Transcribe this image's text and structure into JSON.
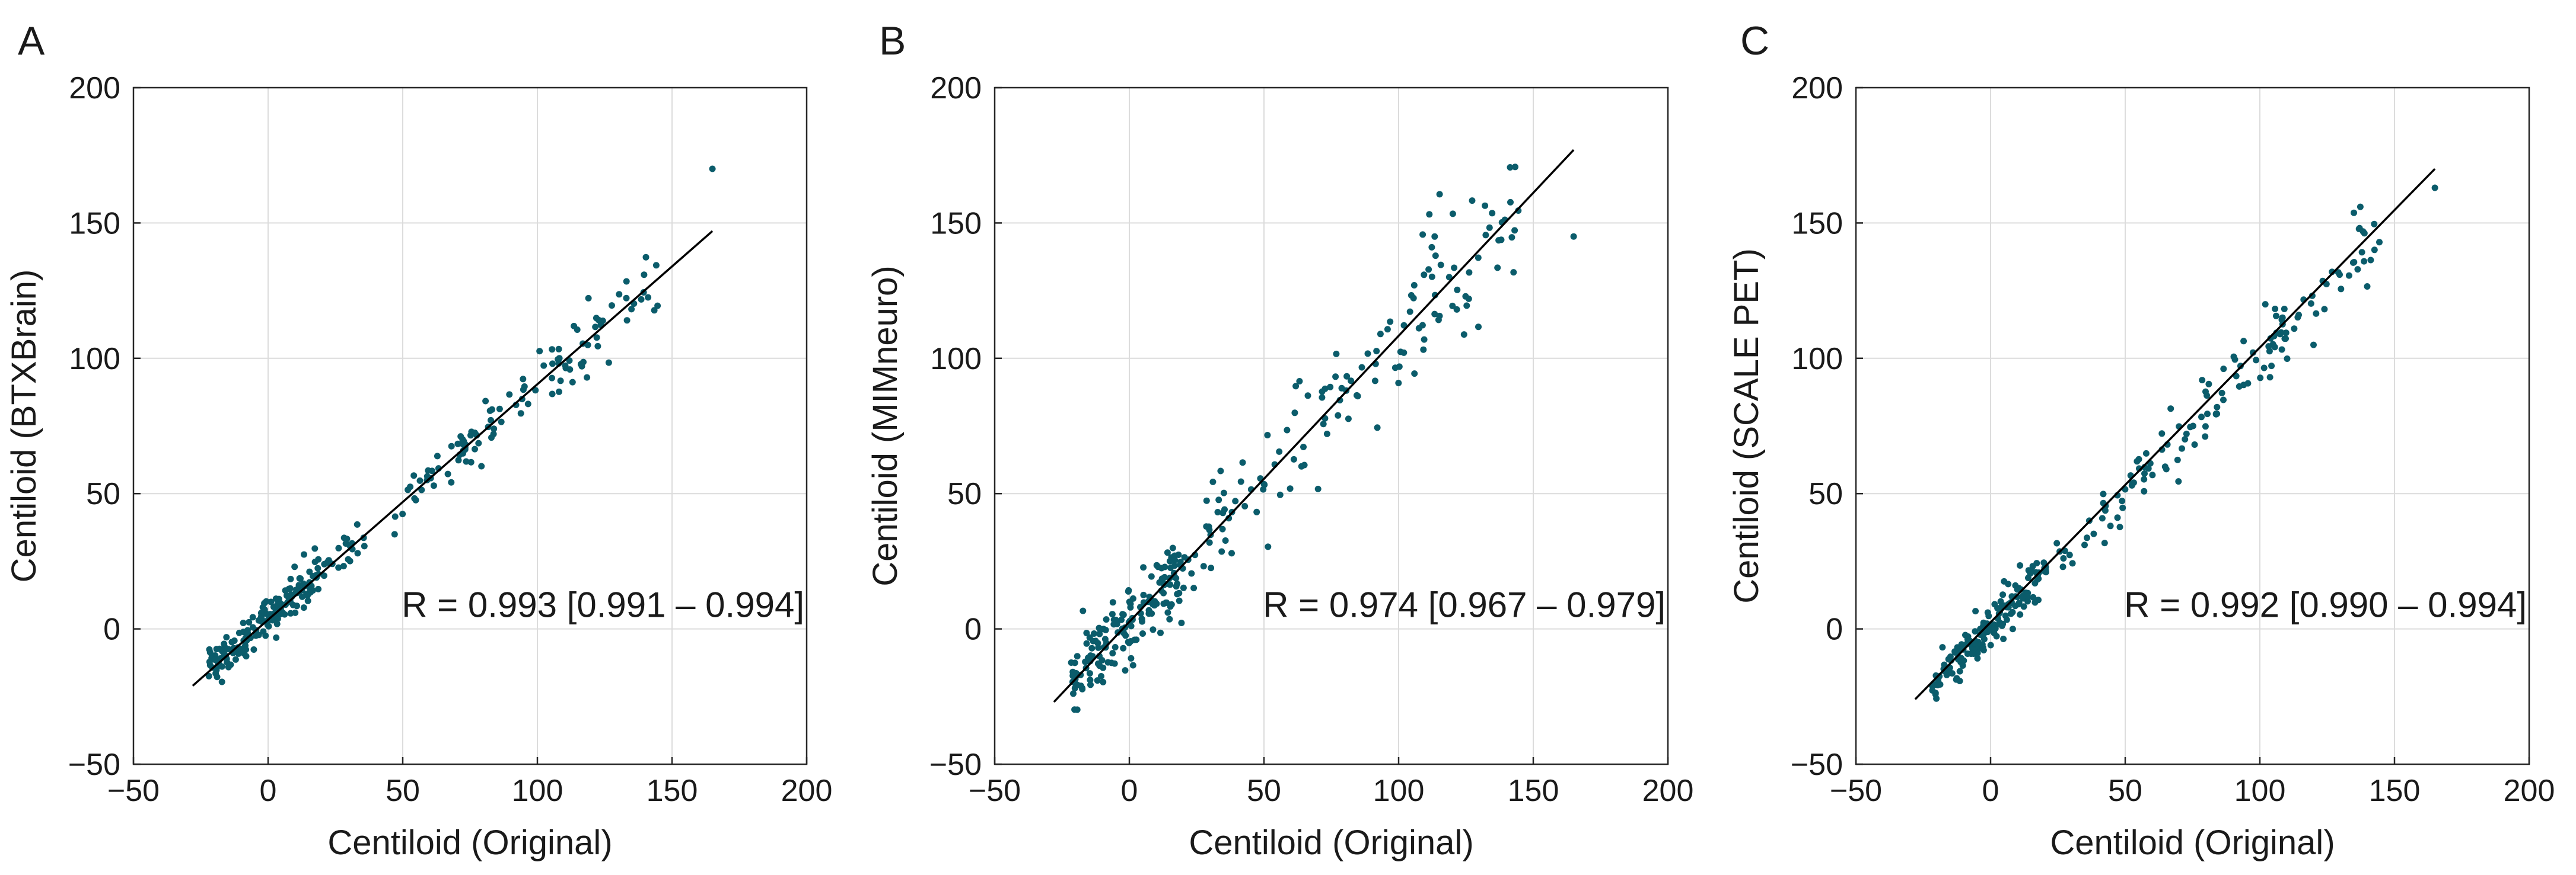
{
  "chart_data": [
    {
      "type": "scatter",
      "panel": "A",
      "xlabel": "Centiloid (Original)",
      "ylabel": "Centiloid (BTXBrain)",
      "xlim": [
        -50,
        200
      ],
      "ylim": [
        -50,
        200
      ],
      "xticks": [
        -50,
        0,
        50,
        100,
        150,
        200
      ],
      "yticks": [
        -50,
        0,
        50,
        100,
        150,
        200
      ],
      "tick_labels": [
        "−50",
        "0",
        "50",
        "100",
        "150",
        "200"
      ],
      "grid": true,
      "annotation": "R = 0.993 [0.991 – 0.994]",
      "fit_line": {
        "x": [
          -28,
          165
        ],
        "y": [
          -21,
          147
        ]
      },
      "scatter": {
        "n": 300,
        "x_range": [
          -28,
          165
        ],
        "slope": 0.87,
        "intercept": 3.5,
        "noise": 3.2,
        "seed": 11,
        "outlier": [
          165,
          170
        ]
      }
    },
    {
      "type": "scatter",
      "panel": "B",
      "xlabel": "Centiloid (Original)",
      "ylabel": "Centiloid (MIMneuro)",
      "xlim": [
        -50,
        200
      ],
      "ylim": [
        -50,
        200
      ],
      "xticks": [
        -50,
        0,
        50,
        100,
        150,
        200
      ],
      "yticks": [
        -50,
        0,
        50,
        100,
        150,
        200
      ],
      "tick_labels": [
        "−50",
        "0",
        "50",
        "100",
        "150",
        "200"
      ],
      "grid": true,
      "annotation": "R = 0.974 [0.967 – 0.979]",
      "fit_line": {
        "x": [
          -28,
          165
        ],
        "y": [
          -27,
          177
        ]
      },
      "scatter": {
        "n": 300,
        "x_range": [
          -28,
          165
        ],
        "slope": 1.06,
        "intercept": 2,
        "noise": 7,
        "seed": 23,
        "outlier": [
          165,
          145
        ]
      }
    },
    {
      "type": "scatter",
      "panel": "C",
      "xlabel": "Centiloid (Original)",
      "ylabel": "Centiloid (SCALE PET)",
      "xlim": [
        -50,
        200
      ],
      "ylim": [
        -50,
        200
      ],
      "xticks": [
        -50,
        0,
        50,
        100,
        150,
        200
      ],
      "yticks": [
        -50,
        0,
        50,
        100,
        150,
        200
      ],
      "tick_labels": [
        "−50",
        "0",
        "50",
        "100",
        "150",
        "200"
      ],
      "grid": true,
      "annotation": "R = 0.992 [0.990 – 0.994]",
      "fit_line": {
        "x": [
          -28,
          165
        ],
        "y": [
          -26,
          170
        ]
      },
      "scatter": {
        "n": 300,
        "x_range": [
          -28,
          165
        ],
        "slope": 1.0,
        "intercept": 1,
        "noise": 3.6,
        "seed": 37,
        "outlier": [
          165,
          163
        ]
      }
    }
  ],
  "colors": {
    "points": "#0b5c6b",
    "fit_line": "#000000"
  }
}
